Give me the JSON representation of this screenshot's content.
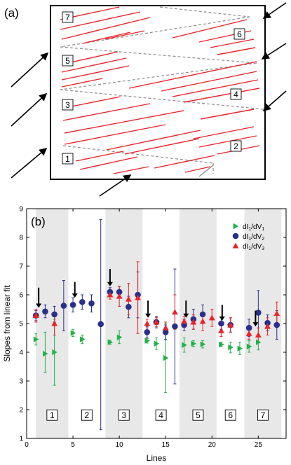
{
  "panel_a": {
    "label": "(a)",
    "section_labels": [
      "1",
      "2",
      "3",
      "4",
      "5",
      "6",
      "7"
    ]
  },
  "panel_b": {
    "label": "(b)"
  },
  "chart_data": {
    "type": "scatter",
    "xlabel": "Lines",
    "ylabel": "Slopes from linear fit",
    "xlim": [
      0,
      28
    ],
    "ylim": [
      1,
      9
    ],
    "xticks": [
      0,
      5,
      10,
      15,
      20,
      25
    ],
    "yticks": [
      1,
      2,
      3,
      4,
      5,
      6,
      7,
      8,
      9
    ],
    "shaded_bands": [
      [
        1,
        4.5
      ],
      [
        8.5,
        12.5
      ],
      [
        16.5,
        20.5
      ],
      [
        23.5,
        27.5
      ]
    ],
    "section_labels": [
      {
        "text": "1",
        "x": 2.75
      },
      {
        "text": "2",
        "x": 6.5
      },
      {
        "text": "3",
        "x": 10.5
      },
      {
        "text": "4",
        "x": 14.5
      },
      {
        "text": "5",
        "x": 18.5
      },
      {
        "text": "6",
        "x": 22.0
      },
      {
        "text": "7",
        "x": 25.5
      }
    ],
    "section_label_y": 1.8,
    "arrows": [
      {
        "x": 1.3,
        "y_top": 6.25,
        "y_tip": 5.55
      },
      {
        "x": 5.2,
        "y_top": 6.45,
        "y_tip": 5.9
      },
      {
        "x": 9.0,
        "y_top": 6.9,
        "y_tip": 6.3
      },
      {
        "x": 13.1,
        "y_top": 5.8,
        "y_tip": 5.2
      },
      {
        "x": 17.2,
        "y_top": 5.8,
        "y_tip": 5.2
      },
      {
        "x": 21.1,
        "y_top": 5.65,
        "y_tip": 5.1
      },
      {
        "x": 24.7,
        "y_top": 5.45,
        "y_tip": 4.9
      }
    ],
    "series": [
      {
        "name": "dI1/dV1",
        "legend_main": "dI",
        "legend_sub1": "1",
        "legend_mid": "/dV",
        "legend_sub2": "1",
        "marker": "triangle-right",
        "color": "#22b04a",
        "points": [
          {
            "x": 1,
            "y": 4.45,
            "lo": 4.25,
            "hi": 4.65
          },
          {
            "x": 2,
            "y": 3.95,
            "lo": 3.3,
            "hi": 4.7
          },
          {
            "x": 3,
            "y": 4.0,
            "lo": 2.85,
            "hi": 5.15
          },
          {
            "x": 5,
            "y": 4.67,
            "lo": 4.55,
            "hi": 4.8
          },
          {
            "x": 6,
            "y": 4.45,
            "lo": 4.3,
            "hi": 4.6
          },
          {
            "x": 9,
            "y": 4.35,
            "lo": 4.28,
            "hi": 4.42
          },
          {
            "x": 10,
            "y": 4.52,
            "lo": 4.3,
            "hi": 4.75
          },
          {
            "x": 13,
            "y": 4.4,
            "lo": 4.32,
            "hi": 4.48
          },
          {
            "x": 14,
            "y": 4.3,
            "lo": 4.1,
            "hi": 4.5
          },
          {
            "x": 15,
            "y": 3.8,
            "lo": 2.6,
            "hi": 5.0
          },
          {
            "x": 17,
            "y": 4.25,
            "lo": 4.0,
            "hi": 4.5
          },
          {
            "x": 18,
            "y": 4.3,
            "lo": 4.2,
            "hi": 4.4
          },
          {
            "x": 19,
            "y": 4.28,
            "lo": 4.15,
            "hi": 4.4
          },
          {
            "x": 21,
            "y": 4.27,
            "lo": 4.2,
            "hi": 4.35
          },
          {
            "x": 22,
            "y": 4.17,
            "lo": 3.98,
            "hi": 4.35
          },
          {
            "x": 23,
            "y": 4.13,
            "lo": 3.92,
            "hi": 4.35
          },
          {
            "x": 24,
            "y": 4.2,
            "lo": 4.0,
            "hi": 4.4
          },
          {
            "x": 25,
            "y": 4.35,
            "lo": 4.08,
            "hi": 4.62
          }
        ]
      },
      {
        "name": "dI1/dV2",
        "legend_main": "dI",
        "legend_sub1": "1",
        "legend_mid": "/dV",
        "legend_sub2": "2",
        "marker": "circle",
        "color": "#2a2f8a",
        "points": [
          {
            "x": 1,
            "y": 5.28,
            "lo": 5.1,
            "hi": 5.45
          },
          {
            "x": 2,
            "y": 5.42,
            "lo": 5.2,
            "hi": 5.65
          },
          {
            "x": 3,
            "y": 5.32,
            "lo": 5.05,
            "hi": 5.6
          },
          {
            "x": 4,
            "y": 5.62,
            "lo": 4.75,
            "hi": 6.5
          },
          {
            "x": 5,
            "y": 5.65,
            "lo": 5.4,
            "hi": 5.9
          },
          {
            "x": 6,
            "y": 5.75,
            "lo": 5.5,
            "hi": 6.0
          },
          {
            "x": 7,
            "y": 5.7,
            "lo": 5.4,
            "hi": 6.0
          },
          {
            "x": 8,
            "y": 4.98,
            "lo": 1.3,
            "hi": 8.62
          },
          {
            "x": 9,
            "y": 6.1,
            "lo": 5.95,
            "hi": 6.25
          },
          {
            "x": 10,
            "y": 6.1,
            "lo": 5.9,
            "hi": 6.3
          },
          {
            "x": 11,
            "y": 5.58,
            "lo": 5.2,
            "hi": 5.95
          },
          {
            "x": 12,
            "y": 6.0,
            "lo": 5.2,
            "hi": 6.8
          },
          {
            "x": 13,
            "y": 4.7,
            "lo": 4.5,
            "hi": 4.9
          },
          {
            "x": 14,
            "y": 5.05,
            "lo": 4.85,
            "hi": 5.25
          },
          {
            "x": 15,
            "y": 4.7,
            "lo": 4.45,
            "hi": 4.95
          },
          {
            "x": 16,
            "y": 4.9,
            "lo": 2.9,
            "hi": 6.9
          },
          {
            "x": 17,
            "y": 4.95,
            "lo": 4.75,
            "hi": 5.15
          },
          {
            "x": 18,
            "y": 5.15,
            "lo": 4.8,
            "hi": 5.5
          },
          {
            "x": 19,
            "y": 5.32,
            "lo": 5.0,
            "hi": 5.65
          },
          {
            "x": 21,
            "y": 5.0,
            "lo": 4.8,
            "hi": 5.2
          },
          {
            "x": 22,
            "y": 4.95,
            "lo": 4.7,
            "hi": 5.2
          },
          {
            "x": 24,
            "y": 4.85,
            "lo": 4.55,
            "hi": 5.15
          },
          {
            "x": 25,
            "y": 5.38,
            "lo": 4.6,
            "hi": 6.15
          },
          {
            "x": 26,
            "y": 5.02,
            "lo": 4.75,
            "hi": 5.3
          },
          {
            "x": 27,
            "y": 4.95,
            "lo": 4.45,
            "hi": 5.45
          }
        ]
      },
      {
        "name": "dI1/dV3",
        "legend_main": "dI",
        "legend_sub1": "1",
        "legend_mid": "/dV",
        "legend_sub2": "3",
        "marker": "triangle-up",
        "color": "#e8242a",
        "points": [
          {
            "x": 1,
            "y": 5.28,
            "lo": 5.05,
            "hi": 5.5
          },
          {
            "x": 3,
            "y": 5.0,
            "lo": 4.6,
            "hi": 5.4
          },
          {
            "x": 9,
            "y": 6.0,
            "lo": 5.85,
            "hi": 6.15
          },
          {
            "x": 10,
            "y": 5.95,
            "lo": 5.6,
            "hi": 6.3
          },
          {
            "x": 11,
            "y": 5.85,
            "lo": 5.3,
            "hi": 6.4
          },
          {
            "x": 12,
            "y": 5.9,
            "lo": 4.65,
            "hi": 7.15
          },
          {
            "x": 13,
            "y": 5.0,
            "lo": 4.85,
            "hi": 5.15
          },
          {
            "x": 14,
            "y": 5.05,
            "lo": 4.9,
            "hi": 5.2
          },
          {
            "x": 15,
            "y": 4.85,
            "lo": 4.65,
            "hi": 5.05
          },
          {
            "x": 16,
            "y": 5.4,
            "lo": 4.8,
            "hi": 6.0
          },
          {
            "x": 17,
            "y": 5.08,
            "lo": 4.9,
            "hi": 5.25
          },
          {
            "x": 18,
            "y": 5.05,
            "lo": 4.8,
            "hi": 5.3
          },
          {
            "x": 19,
            "y": 5.08,
            "lo": 4.75,
            "hi": 5.4
          },
          {
            "x": 20,
            "y": 5.2,
            "lo": 4.9,
            "hi": 5.5
          },
          {
            "x": 21,
            "y": 4.75,
            "lo": 4.55,
            "hi": 4.95
          },
          {
            "x": 22,
            "y": 4.95,
            "lo": 4.7,
            "hi": 5.2
          },
          {
            "x": 24,
            "y": 4.65,
            "lo": 4.45,
            "hi": 4.85
          },
          {
            "x": 25,
            "y": 4.6,
            "lo": 4.35,
            "hi": 4.85
          },
          {
            "x": 26,
            "y": 4.9,
            "lo": 4.6,
            "hi": 5.2
          },
          {
            "x": 27,
            "y": 5.35,
            "lo": 4.95,
            "hi": 5.75
          }
        ]
      }
    ]
  }
}
